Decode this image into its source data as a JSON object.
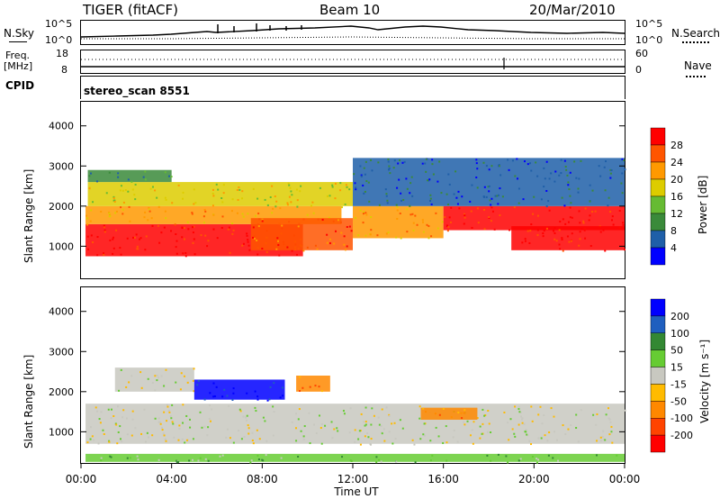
{
  "header": {
    "radar": "TIGER (fitACF)",
    "beam": "Beam 10",
    "date": "20/Mar/2010"
  },
  "top_panels": {
    "nsky_label": "N.Sky",
    "nsearch_label": "N.Search",
    "nsky_ticks": [
      "10^5",
      "10^0"
    ],
    "nsearch_ticks": [
      "10^5",
      "10^0"
    ],
    "freq_label_1": "Freq.",
    "freq_label_2": "[MHz]",
    "freq_ticks": [
      "18",
      "8"
    ],
    "nave_label": "Nave",
    "nave_ticks": [
      "60",
      "0"
    ],
    "cpid_label": "CPID",
    "cpid_value": "stereo_scan 8551"
  },
  "colors": {
    "power_scale": [
      "#0000ff",
      "#1f5fa8",
      "#3a8a3a",
      "#66bb33",
      "#ddcc00",
      "#ff9900",
      "#ff5500",
      "#ff0000"
    ],
    "velocity_scale": [
      "#ff0000",
      "#ff4400",
      "#ff8800",
      "#ffbb00",
      "#c8c8c0",
      "#66cc33",
      "#338833",
      "#1f5fbf",
      "#0000ff"
    ],
    "ground_scatter": "#c8c8c0"
  },
  "chart_data": [
    {
      "type": "heatmap",
      "name": "power",
      "xlabel": "",
      "ylabel": "Slant Range [km]",
      "ylim": [
        200,
        4600
      ],
      "xlim": [
        0,
        24
      ],
      "yticks": [
        "1000",
        "2000",
        "3000",
        "4000"
      ],
      "colorbar_label": "Power [dB]",
      "colorbar_ticks": [
        "28",
        "24",
        "20",
        "16",
        "12",
        "8",
        "4"
      ],
      "bands": [
        {
          "t0": 0.2,
          "t1": 9.8,
          "r0": 750,
          "r1": 1550,
          "level": 7
        },
        {
          "t0": 0.2,
          "t1": 11.5,
          "r0": 1550,
          "r1": 2000,
          "level": 5
        },
        {
          "t0": 0.3,
          "t1": 12.0,
          "r0": 2000,
          "r1": 2600,
          "level": 4
        },
        {
          "t0": 0.3,
          "t1": 4.0,
          "r0": 2600,
          "r1": 2900,
          "level": 2
        },
        {
          "t0": 7.5,
          "t1": 12.0,
          "r0": 900,
          "r1": 1700,
          "level": 6
        },
        {
          "t0": 12.0,
          "t1": 16.0,
          "r0": 1200,
          "r1": 2000,
          "level": 5
        },
        {
          "t0": 16.0,
          "t1": 24.0,
          "r0": 1400,
          "r1": 2000,
          "level": 7
        },
        {
          "t0": 19.0,
          "t1": 24.0,
          "r0": 900,
          "r1": 1500,
          "level": 7
        },
        {
          "t0": 12.0,
          "t1": 24.0,
          "r0": 2000,
          "r1": 3200,
          "level": 1
        }
      ]
    },
    {
      "type": "heatmap",
      "name": "velocity",
      "xlabel": "Time UT",
      "ylabel": "Slant Range [km]",
      "ylim": [
        200,
        4600
      ],
      "xlim": [
        0,
        24
      ],
      "xticks": [
        "00:00",
        "04:00",
        "08:00",
        "12:00",
        "16:00",
        "20:00",
        "00:00"
      ],
      "yticks": [
        "1000",
        "2000",
        "3000",
        "4000"
      ],
      "colorbar_label": "Velocity [m s⁻¹]",
      "colorbar_ticks": [
        "200",
        "100",
        "50",
        "15",
        "-15",
        "-50",
        "-100",
        "-200"
      ],
      "bands": [
        {
          "t0": 0.2,
          "t1": 24.0,
          "r0": 700,
          "r1": 1700,
          "level": 4
        },
        {
          "t0": 1.5,
          "t1": 5.0,
          "r0": 2000,
          "r1": 2600,
          "level": 4
        },
        {
          "t0": 5.0,
          "t1": 9.0,
          "r0": 1800,
          "r1": 2300,
          "level": 8
        },
        {
          "t0": 9.5,
          "t1": 11.0,
          "r0": 2000,
          "r1": 2400,
          "level": 2
        },
        {
          "t0": 15.0,
          "t1": 17.5,
          "r0": 1300,
          "r1": 1600,
          "level": 2
        },
        {
          "t0": 0.2,
          "t1": 24.0,
          "r0": 250,
          "r1": 450,
          "level": 5
        }
      ]
    }
  ]
}
